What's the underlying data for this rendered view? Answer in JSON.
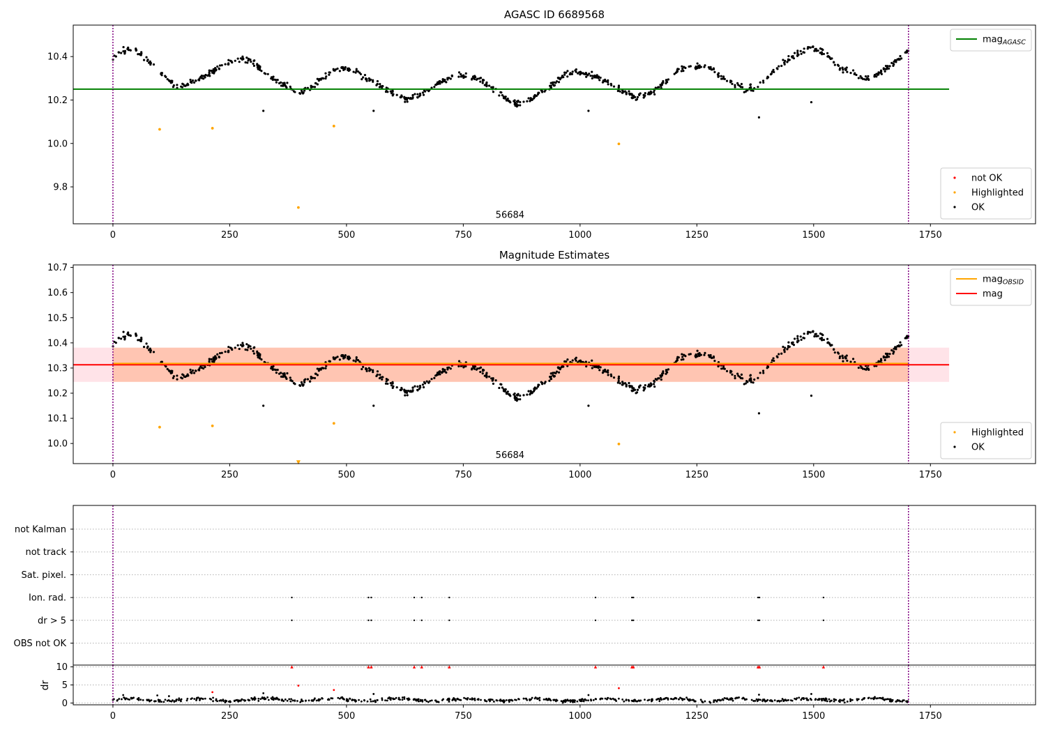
{
  "chart_data": [
    {
      "type": "scatter",
      "title": "AGASC ID 6689568",
      "x_ticks": [
        "0",
        "250",
        "500",
        "750",
        "1000",
        "1250",
        "1500",
        "1750"
      ],
      "y_ticks": [
        "9.8",
        "10.0",
        "10.2",
        "10.4"
      ],
      "xlim": [
        -85,
        1975
      ],
      "ylim": [
        9.63,
        10.545
      ],
      "vlines": [
        0,
        1703
      ],
      "hlines": [
        {
          "name": "mag_AGASC",
          "y": 10.25,
          "x0": -85,
          "x1": 1790,
          "color": "#008000"
        }
      ],
      "annotation": {
        "text": "56684",
        "x": 850,
        "y": 9.67
      },
      "legends": [
        {
          "position": "top-right",
          "entries": [
            {
              "label": "mag",
              "subscript": "AGASC",
              "kind": "line",
              "color": "#008000"
            }
          ]
        },
        {
          "position": "bottom-right",
          "entries": [
            {
              "label": "not OK",
              "kind": "dot",
              "color": "#ff0000"
            },
            {
              "label": "Highlighted",
              "kind": "dot",
              "color": "#ffa500"
            },
            {
              "label": "OK",
              "kind": "dot",
              "color": "#000000"
            }
          ]
        }
      ],
      "series": [
        {
          "name": "OK",
          "color": "#000000",
          "model": "mag_wave",
          "x_range": [
            0,
            1703
          ],
          "n": 820,
          "noise": 0.012
        },
        {
          "name": "OK",
          "color": "#000000",
          "points": [
            [
              322,
              10.15
            ],
            [
              558,
              10.15
            ],
            [
              1018,
              10.15
            ],
            [
              1383,
              10.12
            ],
            [
              1495,
              10.19
            ]
          ]
        },
        {
          "name": "Highlighted",
          "color": "#ffa500",
          "points": [
            [
              100,
              10.065
            ],
            [
              213,
              10.07
            ],
            [
              397,
              9.705
            ],
            [
              473,
              10.08
            ],
            [
              1083,
              9.998
            ]
          ]
        }
      ]
    },
    {
      "type": "scatter",
      "title": "Magnitude Estimates",
      "x_ticks": [
        "0",
        "250",
        "500",
        "750",
        "1000",
        "1250",
        "1500",
        "1750"
      ],
      "y_ticks": [
        "10.0",
        "10.1",
        "10.2",
        "10.3",
        "10.4",
        "10.5",
        "10.6",
        "10.7"
      ],
      "xlim": [
        -85,
        1975
      ],
      "ylim": [
        9.92,
        10.71
      ],
      "vlines": [
        0,
        1703
      ],
      "hlines": [
        {
          "name": "mag",
          "y": 10.313,
          "x0": -85,
          "x1": 1790,
          "color": "#ff0000"
        },
        {
          "name": "mag_OBSID",
          "y": 10.318,
          "x0": 0,
          "x1": 1703,
          "color": "#ffa500"
        }
      ],
      "bands": [
        {
          "name": "mag",
          "y0": 10.245,
          "y1": 10.381,
          "x0": -85,
          "x1": 1790,
          "color": "#ffc0cb"
        },
        {
          "name": "mag_OBSID",
          "y0": 10.245,
          "y1": 10.381,
          "x0": 0,
          "x1": 1703,
          "color": "#ffa070"
        }
      ],
      "annotation": {
        "text": "56684",
        "x": 850,
        "y": 9.953
      },
      "legends": [
        {
          "position": "top-right",
          "entries": [
            {
              "label": "mag",
              "subscript": "OBSID",
              "kind": "line",
              "color": "#ffa500"
            },
            {
              "label": "mag",
              "kind": "line",
              "color": "#ff0000"
            }
          ]
        },
        {
          "position": "bottom-right",
          "entries": [
            {
              "label": "Highlighted",
              "kind": "dot",
              "color": "#ffa500"
            },
            {
              "label": "OK",
              "kind": "dot",
              "color": "#000000"
            }
          ]
        }
      ],
      "series": [
        {
          "name": "OK",
          "color": "#000000",
          "model": "mag_wave",
          "x_range": [
            0,
            1703
          ],
          "n": 820,
          "noise": 0.012
        },
        {
          "name": "OK",
          "color": "#000000",
          "points": [
            [
              322,
              10.15
            ],
            [
              558,
              10.15
            ],
            [
              1018,
              10.15
            ],
            [
              1383,
              10.12
            ],
            [
              1495,
              10.19
            ]
          ]
        },
        {
          "name": "Highlighted",
          "color": "#ffa500",
          "points": [
            [
              100,
              10.065
            ],
            [
              213,
              10.07
            ],
            [
              473,
              10.08
            ],
            [
              1083,
              9.998
            ]
          ]
        },
        {
          "name": "Highlighted",
          "color": "#ffa500",
          "marker": "triangle-down",
          "points": [
            [
              397,
              9.925
            ]
          ]
        }
      ]
    },
    {
      "type": "scatter",
      "categories": [
        "not Kalman",
        "not track",
        "Sat. pixel.",
        "Ion. rad.",
        "dr > 5",
        "OBS not OK"
      ],
      "xlim": [
        -85,
        1975
      ],
      "vlines": [
        0,
        1703
      ],
      "flag_events": {
        "x": [
          383,
          547,
          553,
          645,
          661,
          720,
          1033,
          1111,
          1114,
          1381,
          1384,
          1521
        ],
        "rows": [
          "Ion. rad.",
          "dr > 5"
        ]
      }
    },
    {
      "type": "scatter",
      "ylabel": "dr",
      "x_ticks": [
        "0",
        "250",
        "500",
        "750",
        "1000",
        "1250",
        "1500",
        "1750"
      ],
      "y_ticks": [
        "0",
        "5",
        "10"
      ],
      "xlim": [
        -85,
        1975
      ],
      "ylim": [
        -0.5,
        10.5
      ],
      "vlines": [
        0,
        1703
      ],
      "series": [
        {
          "name": "dr",
          "color": "#000000",
          "model": "dr_noise",
          "x_range": [
            0,
            1703
          ],
          "n": 700
        },
        {
          "name": "dr",
          "color": "#000000",
          "points": [
            [
              22,
              2.2
            ],
            [
              95,
              2.1
            ],
            [
              120,
              1.9
            ],
            [
              322,
              2.7
            ],
            [
              558,
              2.5
            ],
            [
              1018,
              2.2
            ],
            [
              1383,
              2.3
            ],
            [
              1495,
              2.5
            ]
          ]
        },
        {
          "name": "dr > 5",
          "color": "#ff0000",
          "points": [
            [
              213,
              3.0
            ],
            [
              397,
              4.8
            ],
            [
              473,
              3.6
            ],
            [
              1083,
              4.1
            ]
          ]
        },
        {
          "name": "dr > 5",
          "color": "#ff0000",
          "marker": "triangle-up",
          "y_clip": 10,
          "x": [
            383,
            547,
            553,
            645,
            661,
            720,
            1033,
            1111,
            1114,
            1381,
            1384,
            1521
          ]
        }
      ]
    }
  ]
}
